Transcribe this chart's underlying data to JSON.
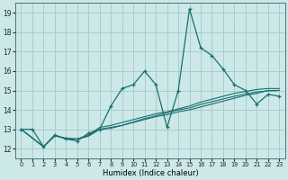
{
  "xlabel": "Humidex (Indice chaleur)",
  "bg_color": "#cce8e8",
  "grid_color": "#aacccc",
  "line_color": "#1a7070",
  "xlim": [
    -0.5,
    23.5
  ],
  "ylim": [
    11.5,
    19.5
  ],
  "xticks": [
    0,
    1,
    2,
    3,
    4,
    5,
    6,
    7,
    8,
    9,
    10,
    11,
    12,
    13,
    14,
    15,
    16,
    17,
    18,
    19,
    20,
    21,
    22,
    23
  ],
  "yticks": [
    12,
    13,
    14,
    15,
    16,
    17,
    18,
    19
  ],
  "main_line_x": [
    0,
    1,
    2,
    3,
    4,
    5,
    6,
    7,
    8,
    9,
    10,
    11,
    12,
    13,
    14,
    15,
    16,
    17,
    18,
    19,
    20,
    21,
    22,
    23
  ],
  "main_line_y": [
    13.0,
    13.0,
    12.1,
    12.7,
    12.5,
    12.4,
    12.8,
    13.0,
    14.2,
    15.1,
    15.3,
    16.0,
    15.3,
    13.1,
    15.0,
    19.2,
    17.2,
    16.8,
    16.1,
    15.3,
    15.0,
    14.3,
    14.8,
    14.7
  ],
  "line2_x": [
    0,
    2,
    3,
    4,
    5,
    6,
    7,
    8,
    9,
    10,
    11,
    12,
    13,
    14,
    15,
    16,
    17,
    18,
    19,
    20,
    21,
    22,
    23
  ],
  "line2_y": [
    13.0,
    12.1,
    12.65,
    12.55,
    12.5,
    12.65,
    13.0,
    13.1,
    13.2,
    13.35,
    13.5,
    13.65,
    13.75,
    13.9,
    14.0,
    14.15,
    14.3,
    14.45,
    14.6,
    14.75,
    14.85,
    15.0,
    15.0
  ],
  "line3_x": [
    0,
    2,
    3,
    4,
    5,
    6,
    7,
    8,
    9,
    10,
    11,
    12,
    13,
    14,
    15,
    16,
    17,
    18,
    19,
    20,
    21,
    22,
    23
  ],
  "line3_y": [
    13.0,
    12.1,
    12.7,
    12.5,
    12.5,
    12.7,
    13.1,
    13.2,
    13.35,
    13.5,
    13.65,
    13.8,
    13.9,
    14.05,
    14.2,
    14.4,
    14.55,
    14.7,
    14.85,
    14.95,
    15.05,
    15.1,
    15.1
  ],
  "line4_x": [
    0,
    2,
    3,
    4,
    5,
    6,
    7,
    8,
    9,
    10,
    11,
    12,
    13,
    14,
    15,
    16,
    17,
    18,
    19,
    20,
    21,
    22,
    23
  ],
  "line4_y": [
    13.0,
    12.1,
    12.7,
    12.5,
    12.5,
    12.65,
    13.0,
    13.05,
    13.2,
    13.38,
    13.55,
    13.7,
    13.85,
    14.0,
    14.1,
    14.28,
    14.42,
    14.56,
    14.7,
    14.82,
    14.92,
    14.98,
    15.0
  ]
}
